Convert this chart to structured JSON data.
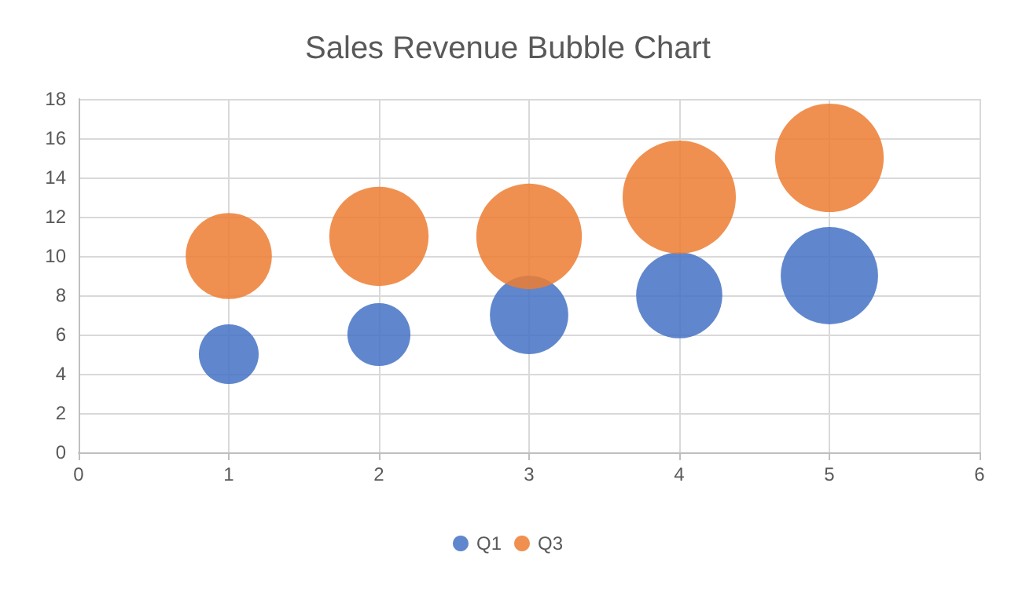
{
  "chart_data": {
    "type": "bubble",
    "title": "Sales Revenue Bubble Chart",
    "x": [
      1,
      2,
      3,
      4,
      5
    ],
    "series": [
      {
        "name": "Q1",
        "color": "#4472c4",
        "values": [
          5,
          6,
          7,
          8,
          9
        ],
        "sizes": [
          0.28,
          0.31,
          0.48,
          0.58,
          0.74
        ]
      },
      {
        "name": "Q3",
        "color": "#ed7d31",
        "values": [
          10,
          11,
          11,
          13,
          15
        ],
        "sizes": [
          0.58,
          0.77,
          0.87,
          1,
          0.92
        ]
      }
    ],
    "xlim": [
      0,
      6
    ],
    "xticks": [
      0,
      1,
      2,
      3,
      4,
      5,
      6
    ],
    "ylim": [
      0,
      18
    ],
    "yticks": [
      0,
      2,
      4,
      6,
      8,
      10,
      12,
      14,
      16,
      18
    ],
    "grid": true,
    "legend": "bottom"
  }
}
